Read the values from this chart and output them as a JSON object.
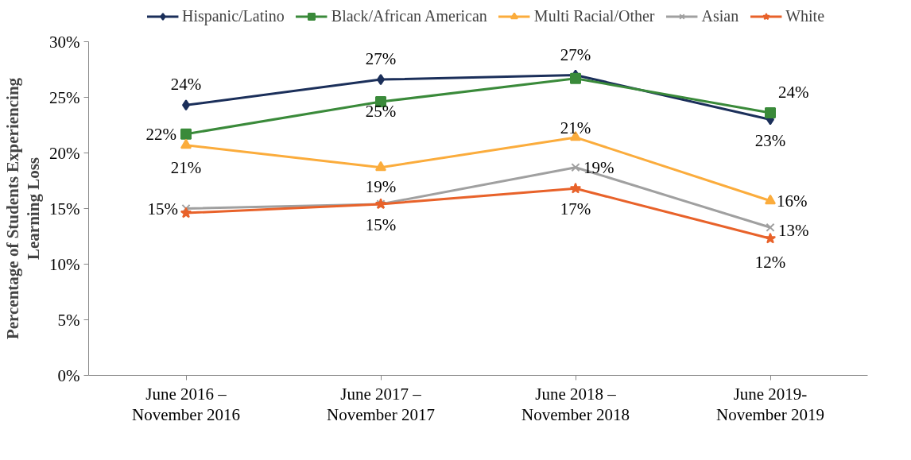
{
  "chart_data": {
    "type": "line",
    "ylabel": "Percentage of Students Experiencing\nLearning Loss",
    "categories": [
      "June 2016 –\nNovember 2016",
      "June 2017 –\nNovember 2017",
      "June 2018 –\nNovember 2018",
      "June 2019-\nNovember 2019"
    ],
    "series": [
      {
        "name": "Hispanic/Latino",
        "color": "#1b2f5a",
        "marker": "diamond",
        "values": [
          24.3,
          26.6,
          27.0,
          23.0
        ],
        "value_labels": [
          "24%",
          "27%",
          "27%",
          "23%"
        ]
      },
      {
        "name": "Black/African American",
        "color": "#3a8a3a",
        "marker": "square",
        "values": [
          21.7,
          24.6,
          26.7,
          23.6
        ],
        "value_labels": [
          "22%",
          "25%",
          null,
          "24%"
        ]
      },
      {
        "name": "Multi Racial/Other",
        "color": "#fbac3c",
        "marker": "triangle",
        "values": [
          20.7,
          18.7,
          21.4,
          15.7
        ],
        "value_labels": [
          "21%",
          "19%",
          "21%",
          "16%"
        ]
      },
      {
        "name": "Asian",
        "color": "#a0a0a0",
        "marker": "cross",
        "values": [
          15.0,
          15.4,
          18.7,
          13.3
        ],
        "value_labels": [
          "15%",
          null,
          "19%",
          "13%"
        ]
      },
      {
        "name": "White",
        "color": "#e8622a",
        "marker": "star",
        "values": [
          14.6,
          15.4,
          16.8,
          12.3
        ],
        "value_labels": [
          null,
          "15%",
          "17%",
          "12%"
        ]
      }
    ],
    "ylim": [
      0,
      30
    ],
    "yticks": [
      {
        "value": 0,
        "label": "0%"
      },
      {
        "value": 5,
        "label": "5%"
      },
      {
        "value": 10,
        "label": "10%"
      },
      {
        "value": 15,
        "label": "15%"
      },
      {
        "value": 20,
        "label": "20%"
      },
      {
        "value": 25,
        "label": "25%"
      },
      {
        "value": 30,
        "label": "30%"
      }
    ],
    "legend": "top",
    "line_style": "solid"
  }
}
